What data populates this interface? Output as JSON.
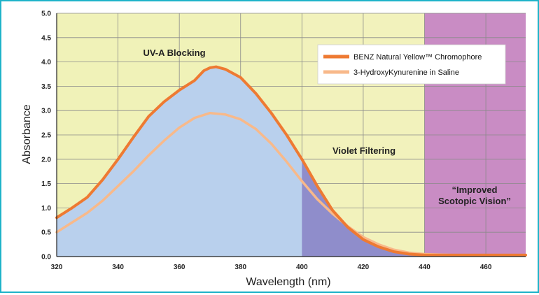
{
  "chart_data": {
    "type": "line",
    "xlabel": "Wavelength (nm)",
    "ylabel": "Absorbance",
    "xlim": [
      320,
      473
    ],
    "ylim": [
      0,
      5.0
    ],
    "x_ticks": [
      "320",
      "340",
      "360",
      "380",
      "400",
      "420",
      "440",
      "460"
    ],
    "y_ticks": [
      "0.0",
      "0.5",
      "1.0",
      "1.5",
      "2.0",
      "2.5",
      "3.0",
      "3.5",
      "4.0",
      "4.5",
      "5.0"
    ],
    "grid": true,
    "legend_position": "top-right",
    "regions": [
      {
        "label": "UV-A Blocking",
        "from": 320,
        "to": 400,
        "color": "#f0f2b8"
      },
      {
        "label": "Violet Filtering",
        "from": 400,
        "to": 440,
        "color": "#f2f2bc"
      },
      {
        "label": "“Improved Scotopic Vision”",
        "label_lines": [
          "“Improved",
          "Scotopic Vision”"
        ],
        "from": 440,
        "to": 473,
        "color": "#c98cc4"
      }
    ],
    "series": [
      {
        "name": "BENZ Natural Yellow™ Chromophore",
        "color": "#ee7a32",
        "fill": "#b9d0ed",
        "x": [
          320,
          325,
          330,
          335,
          340,
          345,
          350,
          355,
          360,
          365,
          368,
          370,
          372,
          375,
          380,
          385,
          390,
          395,
          400,
          405,
          410,
          415,
          420,
          425,
          430,
          435,
          440,
          450,
          460,
          473
        ],
        "y": [
          0.8,
          1.0,
          1.22,
          1.58,
          2.0,
          2.45,
          2.88,
          3.18,
          3.42,
          3.62,
          3.82,
          3.88,
          3.9,
          3.85,
          3.68,
          3.35,
          2.95,
          2.5,
          2.0,
          1.45,
          0.95,
          0.6,
          0.35,
          0.2,
          0.1,
          0.05,
          0.03,
          0.03,
          0.03,
          0.03
        ]
      },
      {
        "name": "3-HydroxyKynurenine in Saline",
        "color": "#f8b98a",
        "x": [
          320,
          325,
          330,
          335,
          340,
          345,
          350,
          355,
          360,
          365,
          370,
          375,
          380,
          385,
          390,
          395,
          400,
          405,
          410,
          415,
          420,
          425,
          430,
          435,
          440,
          450,
          460,
          473
        ],
        "y": [
          0.5,
          0.7,
          0.9,
          1.15,
          1.45,
          1.75,
          2.08,
          2.38,
          2.65,
          2.85,
          2.95,
          2.92,
          2.82,
          2.62,
          2.32,
          1.95,
          1.55,
          1.18,
          0.88,
          0.62,
          0.4,
          0.25,
          0.14,
          0.08,
          0.05,
          0.03,
          0.03,
          0.03
        ]
      }
    ]
  }
}
